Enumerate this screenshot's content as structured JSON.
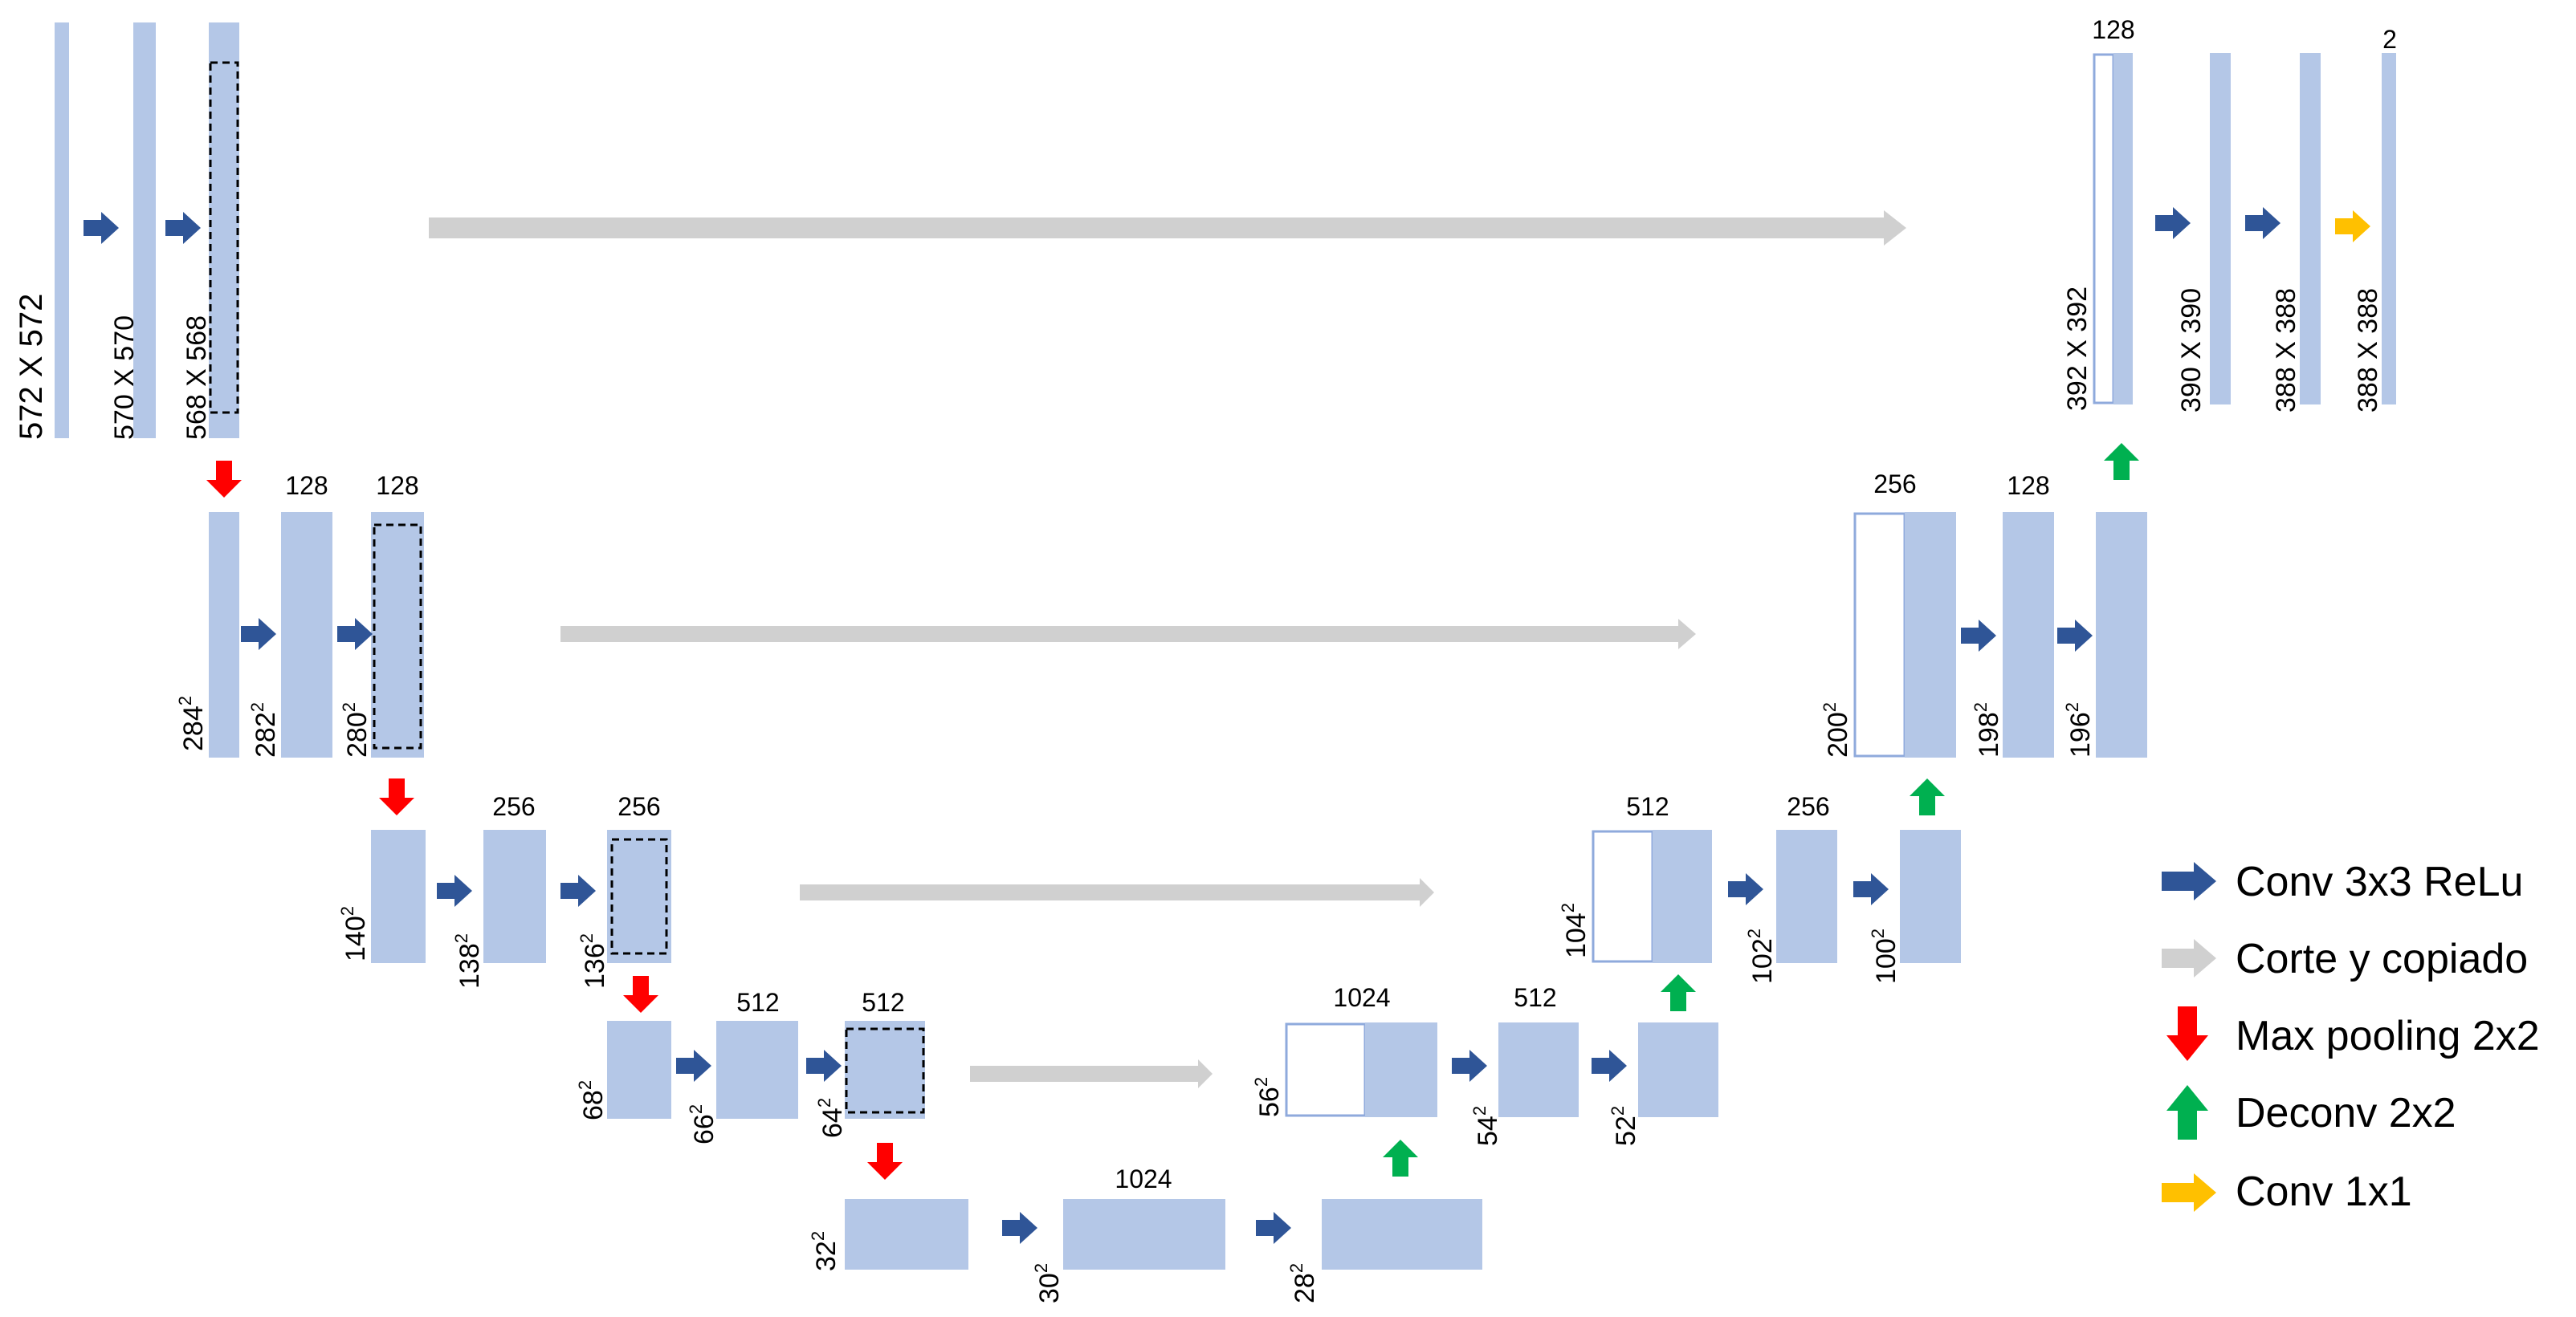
{
  "colors": {
    "feature_map": "#B4C7E7",
    "feature_map_border": "#8FAADC",
    "conv_arrow": "#2F5597",
    "copy_arrow": "#BFBFBF",
    "pool_arrow": "#FF0000",
    "deconv_arrow": "#00B050",
    "conv1x1_arrow": "#FFC000"
  },
  "labels": {
    "l1": {
      "in": "572 X 572",
      "c1": "570 X 570",
      "c2": "568 X 568"
    },
    "l2": {
      "in": "284",
      "c1": "282",
      "c2": "280",
      "ch1": "128",
      "ch2": "128"
    },
    "l3": {
      "in": "140",
      "c1": "138",
      "c2": "136",
      "ch1": "256",
      "ch2": "256"
    },
    "l4": {
      "in": "68",
      "c1": "66",
      "c2": "64",
      "ch1": "512",
      "ch2": "512"
    },
    "l5": {
      "in": "32",
      "c1": "30",
      "c2": "28",
      "ch1": "1024"
    },
    "u4": {
      "cat": "56",
      "c1": "54",
      "c2": "52",
      "ch_cat": "1024",
      "ch1": "512"
    },
    "u3": {
      "cat": "104",
      "c1": "102",
      "c2": "100",
      "ch_cat": "512",
      "ch1": "256"
    },
    "u2": {
      "cat": "200",
      "c1": "198",
      "c2": "196",
      "ch_cat": "256",
      "ch1": "128"
    },
    "u1": {
      "cat": "392 X 392",
      "c1": "390 X 390",
      "c2": "388 X 388",
      "out": "388 X 388",
      "ch_cat": "128",
      "ch_out": "2"
    },
    "sq": "2"
  },
  "legend": [
    {
      "label": "Conv 3x3 ReLu",
      "icon": "conv-arrow-icon"
    },
    {
      "label": "Corte y copiado",
      "icon": "copy-arrow-icon"
    },
    {
      "label": "Max pooling 2x2",
      "icon": "pool-arrow-icon"
    },
    {
      "label": "Deconv 2x2",
      "icon": "deconv-arrow-icon"
    },
    {
      "label": "Conv 1x1",
      "icon": "conv1x1-arrow-icon"
    }
  ]
}
